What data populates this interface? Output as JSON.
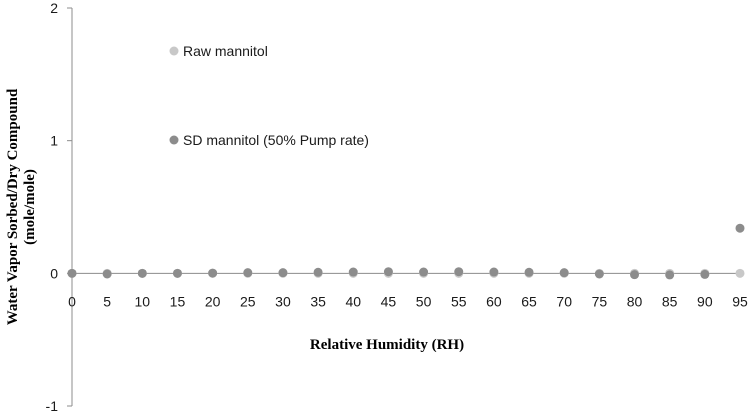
{
  "chart_data": {
    "type": "scatter",
    "xlabel": "Relative Humidity (RH)",
    "ylabel_line1": "Water Vapor Sorbed/Dry Compound",
    "ylabel_line2": "(mole/mole)",
    "xlim": [
      0,
      95
    ],
    "ylim": [
      -1,
      2
    ],
    "x_ticks": [
      "0",
      "5",
      "10",
      "15",
      "20",
      "25",
      "30",
      "35",
      "40",
      "45",
      "50",
      "55",
      "60",
      "65",
      "70",
      "75",
      "80",
      "85",
      "90",
      "95"
    ],
    "y_ticks": [
      "-1",
      "0",
      "1",
      "2"
    ],
    "grid": false,
    "legend_placement": "upper-left-inside",
    "series": [
      {
        "name": "Raw mannitol",
        "color": "#c8c8c8",
        "x": [
          0,
          5,
          10,
          15,
          20,
          25,
          30,
          35,
          40,
          45,
          50,
          55,
          60,
          65,
          70,
          75,
          80,
          85,
          90,
          95
        ],
        "y": [
          0,
          0,
          0,
          0,
          0,
          0,
          0,
          0,
          0,
          0,
          0,
          0,
          0,
          0,
          0,
          0,
          0,
          0,
          0,
          0
        ]
      },
      {
        "name": "SD mannitol (50% Pump rate)",
        "color": "#8c8c8c",
        "x": [
          0,
          5,
          10,
          15,
          20,
          25,
          30,
          35,
          40,
          45,
          50,
          55,
          60,
          65,
          70,
          75,
          80,
          85,
          90,
          95
        ],
        "y": [
          0,
          -0.005,
          0,
          0,
          0.002,
          0.005,
          0.005,
          0.008,
          0.01,
          0.012,
          0.01,
          0.012,
          0.01,
          0.008,
          0.005,
          -0.005,
          -0.01,
          -0.012,
          -0.008,
          0.34
        ]
      }
    ]
  }
}
